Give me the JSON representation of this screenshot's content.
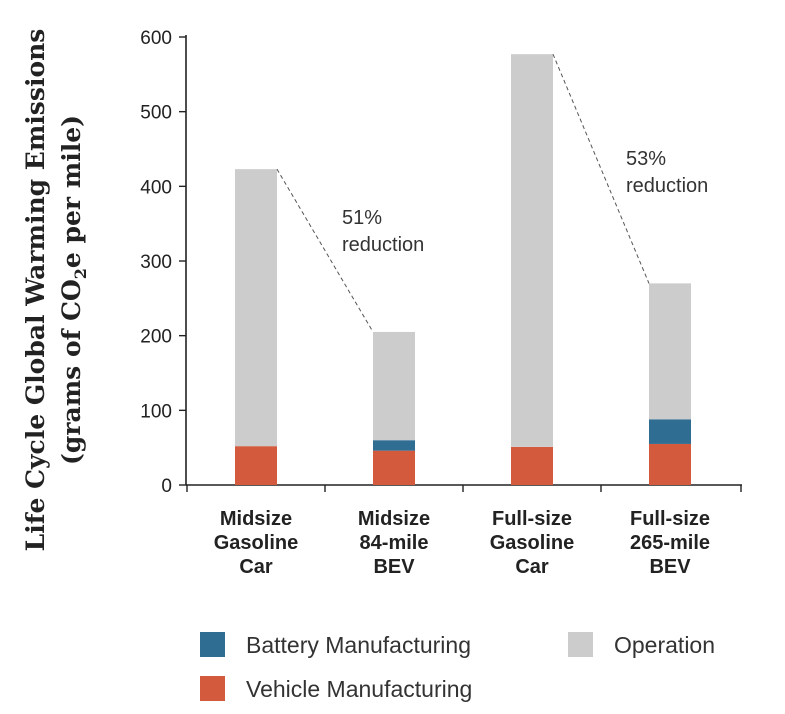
{
  "chart_data": {
    "type": "bar",
    "stacked": true,
    "categories": [
      [
        "Midsize",
        "Gasoline",
        "Car"
      ],
      [
        "Midsize",
        "84-mile",
        "BEV"
      ],
      [
        "Full-size",
        "Gasoline",
        "Car"
      ],
      [
        "Full-size",
        "265-mile",
        "BEV"
      ]
    ],
    "series": [
      {
        "name": "Vehicle Manufacturing",
        "color": "#d35a3d",
        "values": [
          52,
          46,
          51,
          55
        ]
      },
      {
        "name": "Battery Manufacturing",
        "color": "#2f6d93",
        "values": [
          0,
          14,
          0,
          33
        ]
      },
      {
        "name": "Operation",
        "color": "#cccccc",
        "values": [
          371,
          145,
          526,
          182
        ]
      }
    ],
    "ylabel_line1": "Life Cycle Global Warming Emissions",
    "ylabel_line2": [
      "(grams of CO",
      "2",
      "e per mile)"
    ],
    "ylim": [
      0,
      600
    ],
    "yticks": [
      0,
      100,
      200,
      300,
      400,
      500,
      600
    ],
    "annotations": [
      {
        "lines": [
          "51%",
          "reduction"
        ],
        "from_bar": 0,
        "to_bar": 1
      },
      {
        "lines": [
          "53%",
          "reduction"
        ],
        "from_bar": 2,
        "to_bar": 3
      }
    ],
    "legend": {
      "placement": "bottom",
      "order": [
        "Battery Manufacturing",
        "Operation",
        "Vehicle Manufacturing"
      ]
    },
    "grid": false
  }
}
